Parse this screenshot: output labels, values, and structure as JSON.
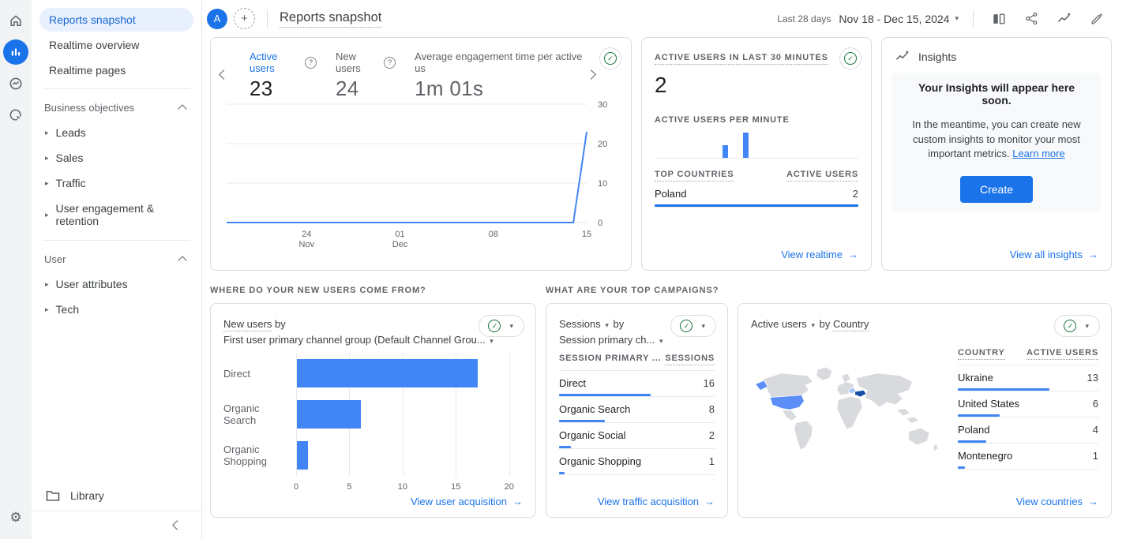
{
  "app": {
    "avatar_letter": "A",
    "page_title": "Reports snapshot",
    "date_preset": "Last 28 days",
    "date_range": "Nov 18 - Dec 15, 2024",
    "accent_color": "#1a73e8"
  },
  "sidebar": {
    "items": [
      {
        "label": "Reports snapshot",
        "active": true
      },
      {
        "label": "Realtime overview",
        "active": false
      },
      {
        "label": "Realtime pages",
        "active": false
      }
    ],
    "sections": [
      {
        "label": "Business objectives",
        "children": [
          "Leads",
          "Sales",
          "Traffic",
          "User engagement & retention"
        ]
      },
      {
        "label": "User",
        "children": [
          "User attributes",
          "Tech"
        ]
      }
    ],
    "library_label": "Library"
  },
  "overview": {
    "metrics": [
      {
        "label": "Active users",
        "value": "23",
        "active": true
      },
      {
        "label": "New users",
        "value": "24",
        "active": false
      },
      {
        "label": "Average engagement time per active us",
        "value": "1m 01s",
        "active": false
      }
    ]
  },
  "realtime": {
    "title": "ACTIVE USERS IN LAST 30 MINUTES",
    "value": "2",
    "per_minute_label": "ACTIVE USERS PER MINUTE",
    "columns": [
      "TOP COUNTRIES",
      "ACTIVE USERS"
    ],
    "rows": [
      {
        "label": "Poland",
        "value": 2
      }
    ],
    "max": 2,
    "bar_scale": 1.0,
    "footer": "View realtime"
  },
  "insights": {
    "title": "Insights",
    "headline": "Your Insights will appear here soon.",
    "body": "In the meantime, you can create new custom insights to monitor your most important metrics.",
    "link_label": "Learn more",
    "button_label": "Create",
    "footer": "View all insights"
  },
  "acquisition": {
    "section_header": "WHERE DO YOUR NEW USERS COME FROM?",
    "title_metric": "New users",
    "title_by": "by",
    "title_dimension": "First user primary channel group (Default Channel Grou...",
    "footer": "View user acquisition"
  },
  "campaigns": {
    "section_header": "WHAT ARE YOUR TOP CAMPAIGNS?",
    "title_metric": "Sessions",
    "title_by": "by",
    "title_dimension": "Session primary ch...",
    "columns": [
      "SESSION PRIMARY ...",
      "SESSIONS"
    ],
    "footer": "View traffic acquisition"
  },
  "geo": {
    "title_metric": "Active users",
    "title_by": "by",
    "title_dimension": "Country",
    "columns": [
      "COUNTRY",
      "ACTIVE USERS"
    ],
    "footer": "View countries"
  },
  "chart_data": [
    {
      "id": "active-users-trend",
      "type": "line",
      "title": "Active users by day",
      "x_range": "Nov 18 - Dec 15, 2024",
      "values": [
        0,
        0,
        0,
        0,
        0,
        0,
        0,
        0,
        0,
        0,
        0,
        0,
        0,
        0,
        0,
        0,
        0,
        0,
        0,
        0,
        0,
        0,
        0,
        0,
        0,
        0,
        0,
        23
      ],
      "xticks": [
        {
          "i": 6,
          "l1": "24",
          "l2": "Nov"
        },
        {
          "i": 13,
          "l1": "01",
          "l2": "Dec"
        },
        {
          "i": 20,
          "l1": "08"
        },
        {
          "i": 27,
          "l1": "15"
        }
      ],
      "yticks": [
        0,
        10,
        20,
        30
      ],
      "ylim": [
        0,
        30
      ],
      "color": "#4285f4",
      "grid": true,
      "legend": "none"
    },
    {
      "id": "realtime-per-minute",
      "type": "bar",
      "title": "Active users per minute (last 30 minutes)",
      "values": [
        0,
        0,
        0,
        0,
        0,
        0,
        0,
        0,
        0,
        0,
        1,
        0,
        0,
        2,
        0,
        0,
        0,
        0,
        0,
        0,
        0,
        0,
        0,
        0,
        0,
        0,
        0,
        0,
        0,
        0
      ],
      "ylim": [
        0,
        2
      ],
      "color": "#4285f4"
    },
    {
      "id": "new-users-by-channel",
      "type": "bar",
      "orientation": "horizontal",
      "title": "New users by first user primary channel group",
      "categories": [
        "Direct",
        "Organic Search",
        "Organic Shopping"
      ],
      "values": [
        17,
        6,
        1
      ],
      "xticks": [
        0,
        5,
        10,
        15,
        20
      ],
      "xlim": [
        0,
        21.5
      ],
      "color": "#4285f4"
    },
    {
      "id": "sessions-by-channel",
      "type": "table",
      "title": "Sessions by session primary channel group",
      "rows": [
        [
          "Direct",
          16
        ],
        [
          "Organic Search",
          8
        ],
        [
          "Organic Social",
          2
        ],
        [
          "Organic Shopping",
          1
        ]
      ],
      "max": 16,
      "bar_scale": 0.59,
      "bar_color": "#4285f4"
    },
    {
      "id": "active-users-by-country",
      "type": "table",
      "title": "Active users by country",
      "rows": [
        [
          "Ukraine",
          13
        ],
        [
          "United States",
          6
        ],
        [
          "Poland",
          4
        ],
        [
          "Montenegro",
          1
        ]
      ],
      "max": 13,
      "bar_scale": 0.65,
      "bar_color": "#4285f4",
      "map_highlights": {
        "united-states": "#5b8ef7",
        "alaska": "#5b8ef7",
        "ukraine": "#174ea6",
        "poland": "#a8c7fa"
      }
    }
  ]
}
